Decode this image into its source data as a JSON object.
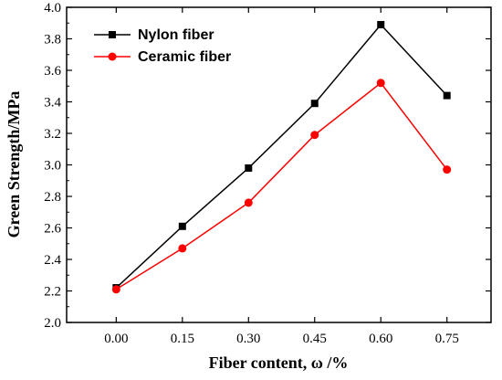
{
  "chart_data": {
    "type": "line",
    "title": "",
    "xlabel": "Fiber content, ω /%",
    "ylabel": "Green Strength/MPa",
    "x": [
      0.0,
      0.15,
      0.3,
      0.45,
      0.6,
      0.75
    ],
    "x_tick_labels": [
      "0.00",
      "0.15",
      "0.30",
      "0.45",
      "0.60",
      "0.75"
    ],
    "xlim": [
      -0.1125,
      0.85
    ],
    "ylim": [
      2.0,
      4.0
    ],
    "y_ticks": [
      2.0,
      2.2,
      2.4,
      2.6,
      2.8,
      3.0,
      3.2,
      3.4,
      3.6,
      3.8,
      4.0
    ],
    "y_tick_labels": [
      "2.0",
      "2.2",
      "2.4",
      "2.6",
      "2.8",
      "3.0",
      "3.2",
      "3.4",
      "3.6",
      "3.8",
      "4.0"
    ],
    "grid": false,
    "legend_position": "top-left",
    "series": [
      {
        "name": "Nylon fiber",
        "color": "#000000",
        "marker": "square",
        "values": [
          2.22,
          2.61,
          2.98,
          3.39,
          3.89,
          3.44
        ]
      },
      {
        "name": "Ceramic fiber",
        "color": "#ff0000",
        "marker": "circle",
        "values": [
          2.21,
          2.47,
          2.76,
          3.19,
          3.52,
          2.97
        ]
      }
    ]
  }
}
